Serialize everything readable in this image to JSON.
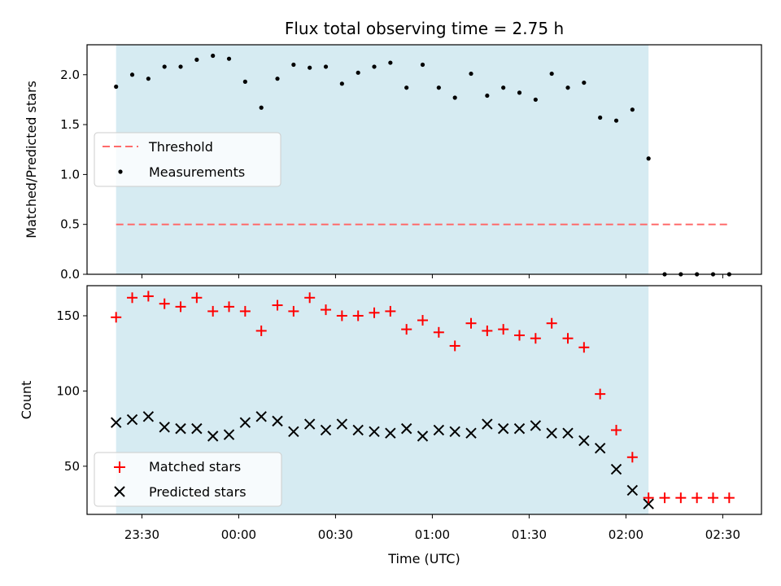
{
  "chart_data": [
    {
      "type": "scatter",
      "title": "Flux total observing time = 2.75 h",
      "xlabel": "",
      "ylabel": "Matched/Predicted stars",
      "ylim": [
        0,
        2.3
      ],
      "yticks": [
        "0.0",
        "0.5",
        "1.0",
        "1.5",
        "2.0"
      ],
      "ytick_values": [
        0,
        0.5,
        1.0,
        1.5,
        2.0
      ],
      "shaded_x_range": [
        "23:22",
        "02:07"
      ],
      "legend_placement": "center-left",
      "threshold": {
        "name": "Threshold",
        "x": [
          "23:22",
          "02:32"
        ],
        "y": 0.5,
        "color": "#ff6b6b"
      },
      "series": [
        {
          "name": "Measurements",
          "color": "#000000",
          "x": [
            "23:22",
            "23:27",
            "23:32",
            "23:37",
            "23:42",
            "23:47",
            "23:52",
            "23:57",
            "00:02",
            "00:07",
            "00:12",
            "00:17",
            "00:22",
            "00:27",
            "00:32",
            "00:37",
            "00:42",
            "00:47",
            "00:52",
            "00:57",
            "01:02",
            "01:07",
            "01:12",
            "01:17",
            "01:22",
            "01:27",
            "01:32",
            "01:37",
            "01:42",
            "01:47",
            "01:52",
            "01:57",
            "02:02",
            "02:07",
            "02:12",
            "02:17",
            "02:22",
            "02:27",
            "02:32"
          ],
          "values": [
            1.88,
            2.0,
            1.96,
            2.08,
            2.08,
            2.15,
            2.19,
            2.16,
            1.93,
            1.67,
            1.96,
            2.1,
            2.07,
            2.08,
            1.91,
            2.02,
            2.08,
            2.12,
            1.87,
            2.1,
            1.87,
            1.77,
            2.01,
            1.79,
            1.87,
            1.82,
            1.75,
            2.01,
            1.87,
            1.92,
            1.57,
            1.54,
            1.65,
            1.16,
            0,
            0,
            0,
            0,
            0
          ]
        }
      ]
    },
    {
      "type": "scatter",
      "xlabel": "Time (UTC)",
      "ylabel": "Count",
      "ylim": [
        18,
        170
      ],
      "yticks": [
        "50",
        "100",
        "150"
      ],
      "ytick_values": [
        50,
        100,
        150
      ],
      "x_tick_labels": [
        "23:30",
        "00:00",
        "00:30",
        "01:00",
        "01:30",
        "02:00",
        "02:30"
      ],
      "x_tick_values": [
        "23:30",
        "00:00",
        "00:30",
        "01:00",
        "01:30",
        "02:00",
        "02:30"
      ],
      "xlim": [
        "23:13",
        "02:42"
      ],
      "shaded_x_range": [
        "23:22",
        "02:07"
      ],
      "legend_placement": "lower-left",
      "series": [
        {
          "name": "Matched stars",
          "marker": "plus",
          "color": "#ff0000",
          "x": [
            "23:22",
            "23:27",
            "23:32",
            "23:37",
            "23:42",
            "23:47",
            "23:52",
            "23:57",
            "00:02",
            "00:07",
            "00:12",
            "00:17",
            "00:22",
            "00:27",
            "00:32",
            "00:37",
            "00:42",
            "00:47",
            "00:52",
            "00:57",
            "01:02",
            "01:07",
            "01:12",
            "01:17",
            "01:22",
            "01:27",
            "01:32",
            "01:37",
            "01:42",
            "01:47",
            "01:52",
            "01:57",
            "02:02",
            "02:07",
            "02:12",
            "02:17",
            "02:22",
            "02:27",
            "02:32"
          ],
          "values": [
            149,
            162,
            163,
            158,
            156,
            162,
            153,
            156,
            153,
            140,
            157,
            153,
            162,
            154,
            150,
            150,
            152,
            153,
            141,
            147,
            139,
            130,
            145,
            140,
            141,
            137,
            135,
            145,
            135,
            129,
            98,
            74,
            56,
            29,
            29,
            29,
            29,
            29,
            29
          ]
        },
        {
          "name": "Predicted stars",
          "marker": "x",
          "color": "#000000",
          "x": [
            "23:22",
            "23:27",
            "23:32",
            "23:37",
            "23:42",
            "23:47",
            "23:52",
            "23:57",
            "00:02",
            "00:07",
            "00:12",
            "00:17",
            "00:22",
            "00:27",
            "00:32",
            "00:37",
            "00:42",
            "00:47",
            "00:52",
            "00:57",
            "01:02",
            "01:07",
            "01:12",
            "01:17",
            "01:22",
            "01:27",
            "01:32",
            "01:37",
            "01:42",
            "01:47",
            "01:52",
            "01:57",
            "02:02",
            "02:07"
          ],
          "values": [
            79,
            81,
            83,
            76,
            75,
            75,
            70,
            71,
            79,
            83,
            80,
            73,
            78,
            74,
            78,
            74,
            73,
            72,
            75,
            70,
            74,
            73,
            72,
            78,
            75,
            75,
            77,
            72,
            72,
            67,
            62,
            48,
            34,
            25
          ]
        }
      ]
    }
  ]
}
